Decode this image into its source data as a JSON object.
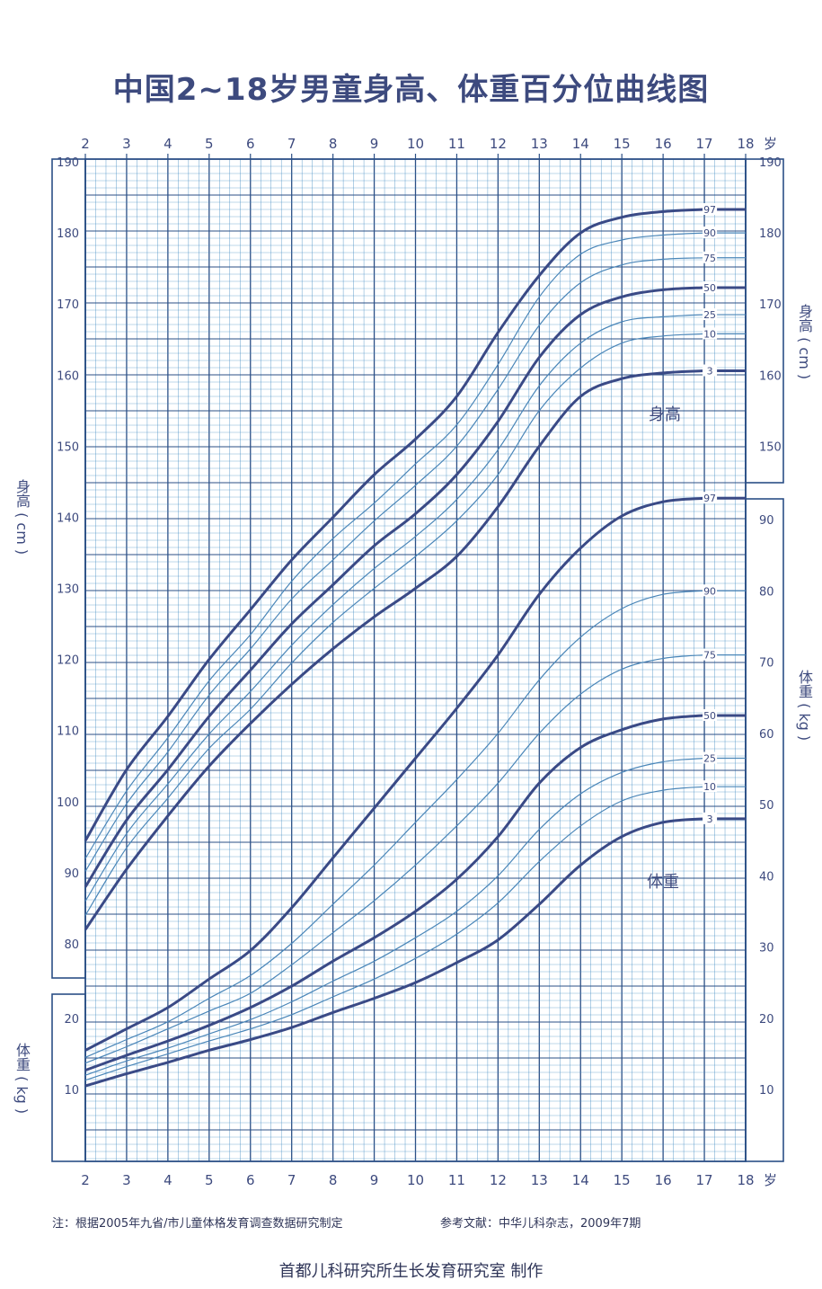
{
  "title": "中国2~18岁男童身高、体重百分位曲线图",
  "note_left": "注：根据2005年九省/市儿童体格发育调查数据研究制定",
  "note_right": "参考文献：中华儿科杂志，2009年7期",
  "footer": "首都儿科研究所生长发育研究室 制作",
  "colors": {
    "grid": "#3e89c2",
    "major": "#2b4f86",
    "thick_curve": "#3a4a86",
    "thin_curve": "#4a86b8",
    "text": "#3d4a7e"
  },
  "chart_data": {
    "type": "line",
    "title": "中国2~18岁男童身高、体重百分位曲线图",
    "x_unit_label": "岁",
    "x_ticks": [
      2,
      3,
      4,
      5,
      6,
      7,
      8,
      9,
      10,
      11,
      12,
      13,
      14,
      15,
      16,
      17,
      18
    ],
    "xlim": [
      2,
      18
    ],
    "grid": true,
    "percentiles": [
      "97",
      "90",
      "75",
      "50",
      "25",
      "10",
      "3"
    ],
    "height": {
      "label": "身高",
      "axis_label_left": "身高 ( cm )",
      "axis_label_right": "身高 ( cm )",
      "ylim": [
        80,
        190
      ],
      "ticks": [
        80,
        90,
        100,
        110,
        120,
        130,
        140,
        150,
        160,
        170,
        180,
        190
      ],
      "x": [
        2,
        3,
        4,
        5,
        6,
        7,
        8,
        9,
        10,
        11,
        12,
        13,
        14,
        15,
        16,
        17
      ],
      "series": [
        {
          "name": "97",
          "values": [
            94.5,
            104.5,
            112,
            120,
            127,
            134,
            140,
            146,
            151,
            157,
            166,
            174,
            180,
            182.2,
            183,
            183.3
          ]
        },
        {
          "name": "90",
          "values": [
            92,
            101.5,
            109,
            117,
            123.5,
            131,
            137,
            142,
            147.5,
            153,
            161.5,
            171,
            177,
            179,
            179.7,
            180
          ]
        },
        {
          "name": "75",
          "values": [
            90.2,
            99.7,
            107,
            115,
            121.5,
            128.5,
            134,
            139.5,
            144.5,
            150,
            158,
            167,
            173,
            175.5,
            176.3,
            176.5
          ]
        },
        {
          "name": "50",
          "values": [
            88,
            97.4,
            104.5,
            112,
            118.5,
            125,
            130.5,
            136,
            140.5,
            146,
            153.5,
            162.5,
            168.5,
            171,
            172,
            172.3
          ]
        },
        {
          "name": "25",
          "values": [
            86,
            95.5,
            102.5,
            109.5,
            115.5,
            122,
            127.7,
            132.8,
            137.3,
            142.5,
            149.5,
            158.5,
            164.5,
            167.5,
            168.2,
            168.5
          ]
        },
        {
          "name": "10",
          "values": [
            84,
            93.5,
            100.5,
            107.5,
            113,
            119.5,
            125.2,
            130,
            134.5,
            139.5,
            146,
            155,
            161,
            164.5,
            165.5,
            165.8
          ]
        },
        {
          "name": "3",
          "values": [
            82,
            90.5,
            98,
            105,
            111,
            116.5,
            121.5,
            126,
            130,
            134.5,
            141.5,
            150,
            157,
            159.5,
            160.3,
            160.6
          ]
        }
      ]
    },
    "weight_lower": {
      "label": "体重",
      "axis_label": "体重 ( kg )",
      "ylim": [
        0,
        30
      ],
      "ticks": [
        10,
        20
      ]
    },
    "weight": {
      "label": "体重",
      "axis_label_right": "体重 ( kg )",
      "ylim": [
        0,
        95
      ],
      "ticks": [
        10,
        20,
        30,
        40,
        50,
        60,
        70,
        80,
        90
      ],
      "x": [
        2,
        3,
        4,
        5,
        6,
        7,
        8,
        9,
        10,
        11,
        12,
        13,
        14,
        15,
        16,
        17
      ],
      "series": [
        {
          "name": "97",
          "values": [
            15.5,
            18.5,
            21.5,
            25.5,
            29.5,
            35.5,
            42.5,
            49.5,
            56.5,
            63.5,
            71,
            79.5,
            86,
            90.5,
            92.5,
            93
          ]
        },
        {
          "name": "90",
          "values": [
            14.5,
            17,
            19.5,
            22.8,
            26,
            30.5,
            36,
            41.5,
            47.5,
            53.5,
            60,
            67.5,
            73.5,
            77.5,
            79.5,
            80
          ]
        },
        {
          "name": "75",
          "values": [
            13.7,
            16,
            18.5,
            21,
            23.5,
            27.5,
            32,
            36.5,
            41.5,
            47,
            53,
            60,
            65.5,
            69,
            70.5,
            71
          ]
        },
        {
          "name": "50",
          "values": [
            12.7,
            14.8,
            16.8,
            19,
            21.5,
            24.5,
            28,
            31.3,
            35,
            39.5,
            45.5,
            53,
            58,
            60.5,
            62,
            62.5
          ]
        },
        {
          "name": "25",
          "values": [
            12,
            14,
            15.8,
            17.8,
            19.8,
            22.3,
            25.2,
            28,
            31.3,
            35,
            40,
            46.5,
            51.5,
            54.5,
            56,
            56.5
          ]
        },
        {
          "name": "10",
          "values": [
            11.3,
            13.2,
            15,
            16.8,
            18.5,
            20.5,
            23,
            25.5,
            28.4,
            31.8,
            36.2,
            42,
            47,
            50.5,
            52,
            52.5
          ]
        },
        {
          "name": "3",
          "values": [
            10.5,
            12.2,
            13.8,
            15.5,
            17,
            18.7,
            20.8,
            22.8,
            25,
            27.8,
            31,
            36,
            41.5,
            45.5,
            47.5,
            48
          ]
        }
      ]
    }
  }
}
